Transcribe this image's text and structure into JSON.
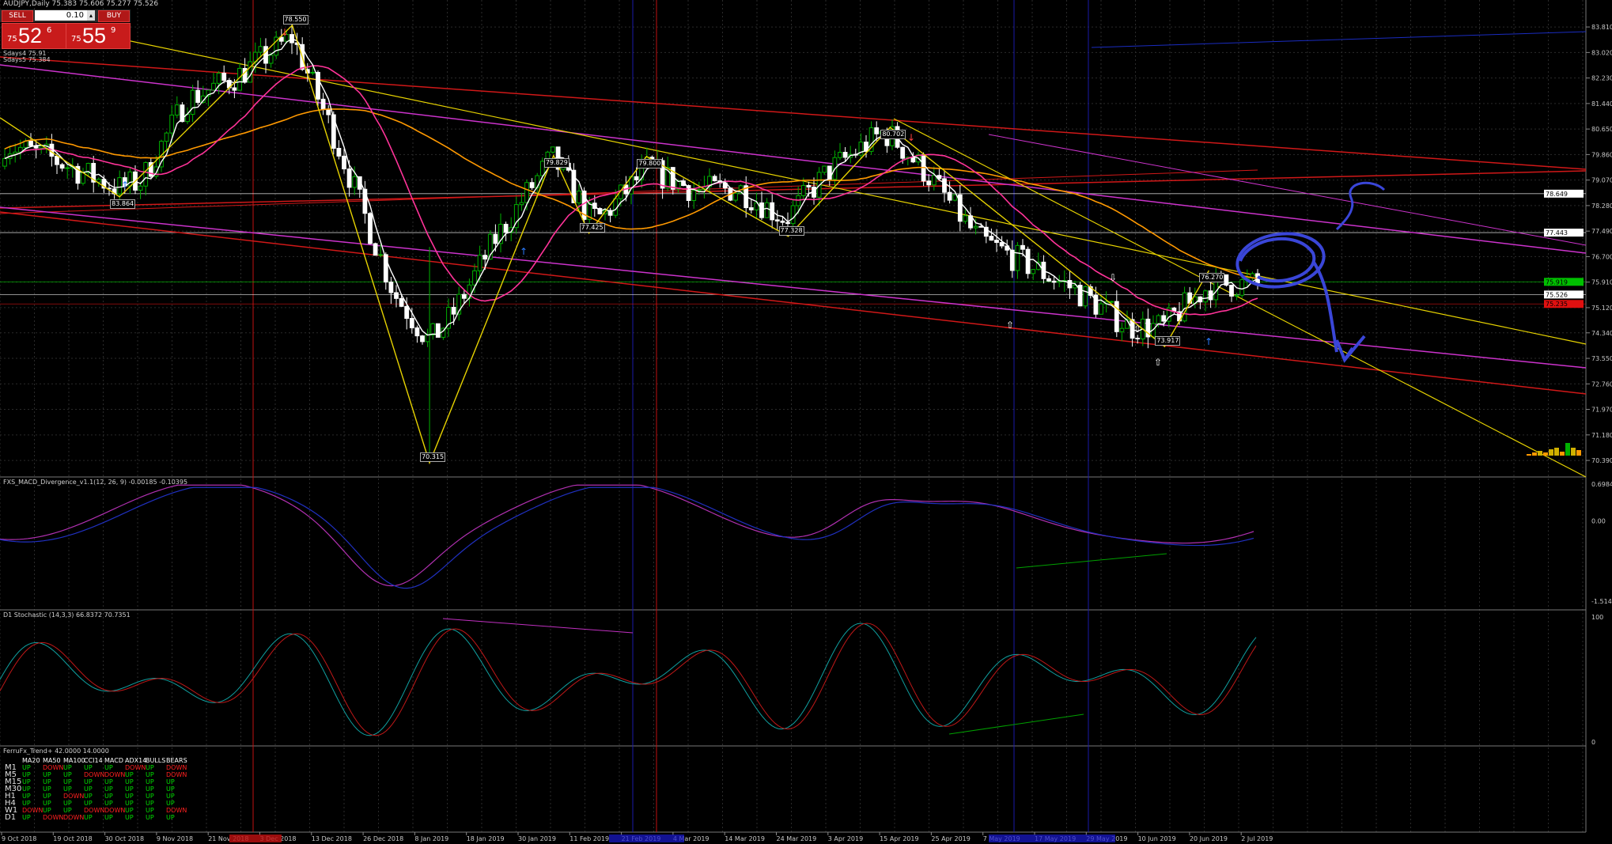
{
  "header": {
    "symbol_line": "AUDJPY,Daily 75.383 75.606 75.277 75.526",
    "sma1": "Sdays4 75.91",
    "sma2": "Sdays5 75.384"
  },
  "trade_panel": {
    "sell_label": "SELL",
    "buy_label": "BUY",
    "lot_value": "0.10",
    "sell_pre": "75",
    "sell_big": "52",
    "sell_sup": "6",
    "buy_pre": "75",
    "buy_big": "55",
    "buy_sup": "9"
  },
  "colors": {
    "background": "#000000",
    "grid": "#2b2b2b",
    "bull": "#00b000",
    "bear": "#ffffff",
    "red_channel": "#d01818",
    "magenta_channel": "#cc33cc",
    "yellow_lines": "#e6d200",
    "orange_ma": "#ff9900",
    "white_ma": "#ffffff",
    "pink_ma": "#ff3399",
    "sketch": "#3a46d8"
  },
  "price_axis": {
    "ticks": [
      "83.810",
      "83.020",
      "82.230",
      "81.440",
      "80.650",
      "79.860",
      "79.070",
      "78.280",
      "77.490",
      "76.700",
      "75.910",
      "75.120",
      "74.340",
      "73.550",
      "72.760",
      "71.970",
      "71.180",
      "70.390"
    ],
    "markers": [
      {
        "label": "78.649",
        "value": 78.649,
        "color": "#ffffff"
      },
      {
        "label": "77.443",
        "value": 77.443,
        "color": "#ffffff"
      },
      {
        "label": "75.919",
        "value": 75.919,
        "color": "#00c000"
      },
      {
        "label": "75.526",
        "value": 75.526,
        "color": "#ffffff"
      },
      {
        "label": "75.235",
        "value": 75.235,
        "color": "#e01010"
      }
    ]
  },
  "time_axis": {
    "labels": [
      "9 Oct 2018",
      "19 Oct 2018",
      "30 Oct 2018",
      "9 Nov 2018",
      "21 Nov 2018",
      "3 Dec 2018",
      "13 Dec 2018",
      "26 Dec 2018",
      "8 Jan 2019",
      "18 Jan 2019",
      "30 Jan 2019",
      "11 Feb 2019",
      "21 Feb 2019",
      "4 Mar 2019",
      "14 Mar 2019",
      "24 Mar 2019",
      "3 Apr 2019",
      "15 Apr 2019",
      "25 Apr 2019",
      "7 May 2019",
      "17 May 2019",
      "29 May 2019",
      "10 Jun 2019",
      "20 Jun 2019",
      "2 Jul 2019"
    ]
  },
  "zigzag_labels": [
    "83.864",
    "78.550",
    "70.315",
    "79.829",
    "77.425",
    "79.800",
    "77.328",
    "80.702",
    "73.917",
    "76.270"
  ],
  "macd": {
    "title": "FXS_MACD_Divergence_v1.1(12, 26, 9) -0.00185 -0.10395",
    "axis": [
      "0.69848",
      "0.00",
      "-1.51401"
    ]
  },
  "stochastic": {
    "title": "D1 Stochastic (14,3,3) 66.8372 70.7351",
    "axis": [
      "100",
      "0"
    ]
  },
  "trend_panel": {
    "title": "FerruFx_Trend+ 42.0000 14.0000",
    "columns": [
      "MA20",
      "MA50",
      "MA100",
      "CCI14",
      "MACD",
      "ADX14",
      "BULLS",
      "BEARS"
    ],
    "rows": [
      {
        "tf": "M1",
        "vals": [
          "UP",
          "DOWN",
          "UP",
          "UP",
          "UP",
          "DOWN",
          "UP",
          "DOWN"
        ]
      },
      {
        "tf": "M5",
        "vals": [
          "UP",
          "UP",
          "UP",
          "DOWN",
          "DOWN",
          "UP",
          "UP",
          "DOWN"
        ]
      },
      {
        "tf": "M15",
        "vals": [
          "UP",
          "UP",
          "UP",
          "UP",
          "UP",
          "UP",
          "UP",
          "UP"
        ]
      },
      {
        "tf": "M30",
        "vals": [
          "UP",
          "UP",
          "UP",
          "UP",
          "UP",
          "UP",
          "UP",
          "UP"
        ]
      },
      {
        "tf": "H1",
        "vals": [
          "UP",
          "UP",
          "DOWN",
          "UP",
          "UP",
          "UP",
          "UP",
          "UP"
        ]
      },
      {
        "tf": "H4",
        "vals": [
          "UP",
          "UP",
          "UP",
          "UP",
          "UP",
          "UP",
          "UP",
          "UP"
        ]
      },
      {
        "tf": "W1",
        "vals": [
          "DOWN",
          "UP",
          "UP",
          "DOWN",
          "DOWN",
          "UP",
          "UP",
          "DOWN"
        ]
      },
      {
        "tf": "D1",
        "vals": [
          "UP",
          "DOWN",
          "DOWN",
          "UP",
          "UP",
          "UP",
          "UP",
          "UP"
        ]
      }
    ]
  },
  "chart_data": {
    "type": "candlestick",
    "title": "AUDJPY,Daily",
    "ylim": [
      70.0,
      84.4
    ],
    "grid": true,
    "close_series_approx": {
      "x": [
        "9 Oct 2018",
        "19 Oct 2018",
        "30 Oct 2018",
        "9 Nov 2018",
        "21 Nov 2018",
        "3 Dec 2018",
        "13 Dec 2018",
        "26 Dec 2018",
        "8 Jan 2019",
        "18 Jan 2019",
        "30 Jan 2019",
        "11 Feb 2019",
        "21 Feb 2019",
        "4 Mar 2019",
        "14 Mar 2019",
        "24 Mar 2019",
        "3 Apr 2019",
        "15 Apr 2019",
        "25 Apr 2019",
        "7 May 2019",
        "17 May 2019",
        "29 May 2019",
        "10 Jun 2019",
        "20 Jun 2019",
        "2 Jul 2019"
      ],
      "y": [
        79.6,
        79.2,
        78.9,
        82.3,
        82.4,
        83.2,
        80.9,
        77.0,
        77.2,
        78.8,
        79.8,
        77.9,
        79.1,
        78.6,
        79.3,
        78.3,
        79.9,
        80.6,
        78.9,
        76.2,
        75.8,
        75.3,
        74.3,
        75.2,
        75.5
      ]
    },
    "zigzag": {
      "x": [
        "28 Sep 2018",
        "25 Oct 2018",
        "3 Dec 2018",
        "3 Jan 2019",
        "31 Jan 2019",
        "8 Feb 2019",
        "21 Feb 2019",
        "25 Mar 2019",
        "17 Apr 2019",
        "18 Jun 2019",
        "28 Jun 2019"
      ],
      "y": [
        81.0,
        78.55,
        83.864,
        70.315,
        79.829,
        77.425,
        79.8,
        77.328,
        80.702,
        73.917,
        76.27
      ]
    },
    "sketch": [
      "S"
    ]
  }
}
